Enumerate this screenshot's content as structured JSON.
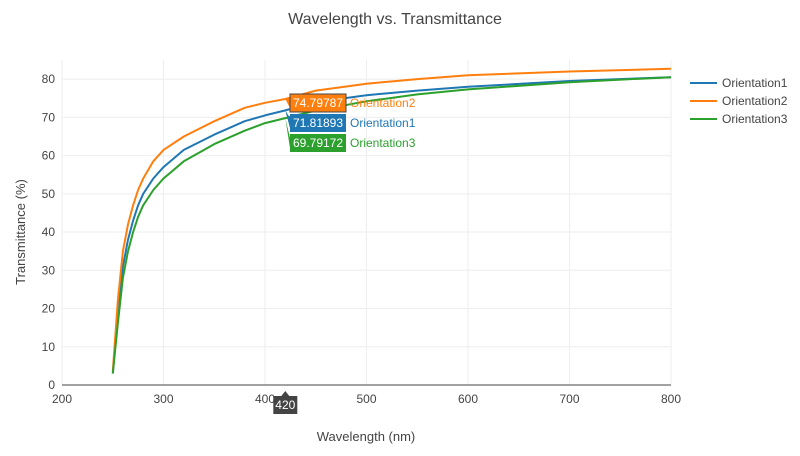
{
  "chart_data": {
    "type": "line",
    "title": "Wavelength vs. Transmittance",
    "xlabel": "Wavelength (nm)",
    "ylabel": "Transmittance (%)",
    "xlim": [
      200,
      800
    ],
    "ylim": [
      0,
      85
    ],
    "xticks": [
      200,
      300,
      400,
      500,
      600,
      700,
      800
    ],
    "yticks": [
      0,
      10,
      20,
      30,
      40,
      50,
      60,
      70,
      80
    ],
    "grid": true,
    "legend_position": "right",
    "x": [
      250,
      255,
      260,
      265,
      270,
      275,
      280,
      290,
      300,
      320,
      350,
      380,
      400,
      420,
      450,
      500,
      550,
      600,
      700,
      800
    ],
    "series": [
      {
        "name": "Orientation1",
        "color": "#1f77b4",
        "values": [
          3,
          18,
          31,
          38,
          43,
          47,
          50,
          54,
          57,
          61.5,
          65.5,
          69,
          70.5,
          71.81893,
          74,
          75.8,
          77,
          78,
          79.5,
          80.5
        ]
      },
      {
        "name": "Orientation2",
        "color": "#ff7f0e",
        "values": [
          3.5,
          22,
          35,
          42,
          47,
          51,
          54,
          58.5,
          61.5,
          65,
          69,
          72.5,
          73.8,
          74.79787,
          77,
          78.8,
          80,
          81,
          82,
          82.7
        ]
      },
      {
        "name": "Orientation3",
        "color": "#2ca02c",
        "values": [
          3,
          16,
          28,
          35,
          40,
          44,
          47,
          51,
          54,
          58.5,
          63,
          66.5,
          68.5,
          69.79172,
          71.8,
          74.2,
          76,
          77.3,
          79.2,
          80.5
        ]
      }
    ],
    "hover": {
      "x_label": "420",
      "labels": [
        {
          "series": "Orientation2",
          "value": "74.79787",
          "name": "Orientation2",
          "y": 74.79787
        },
        {
          "series": "Orientation1",
          "value": "71.81893",
          "name": "Orientation1",
          "y": 71.81893
        },
        {
          "series": "Orientation3",
          "value": "69.79172",
          "name": "Orientation3",
          "y": 69.79172
        }
      ]
    }
  }
}
